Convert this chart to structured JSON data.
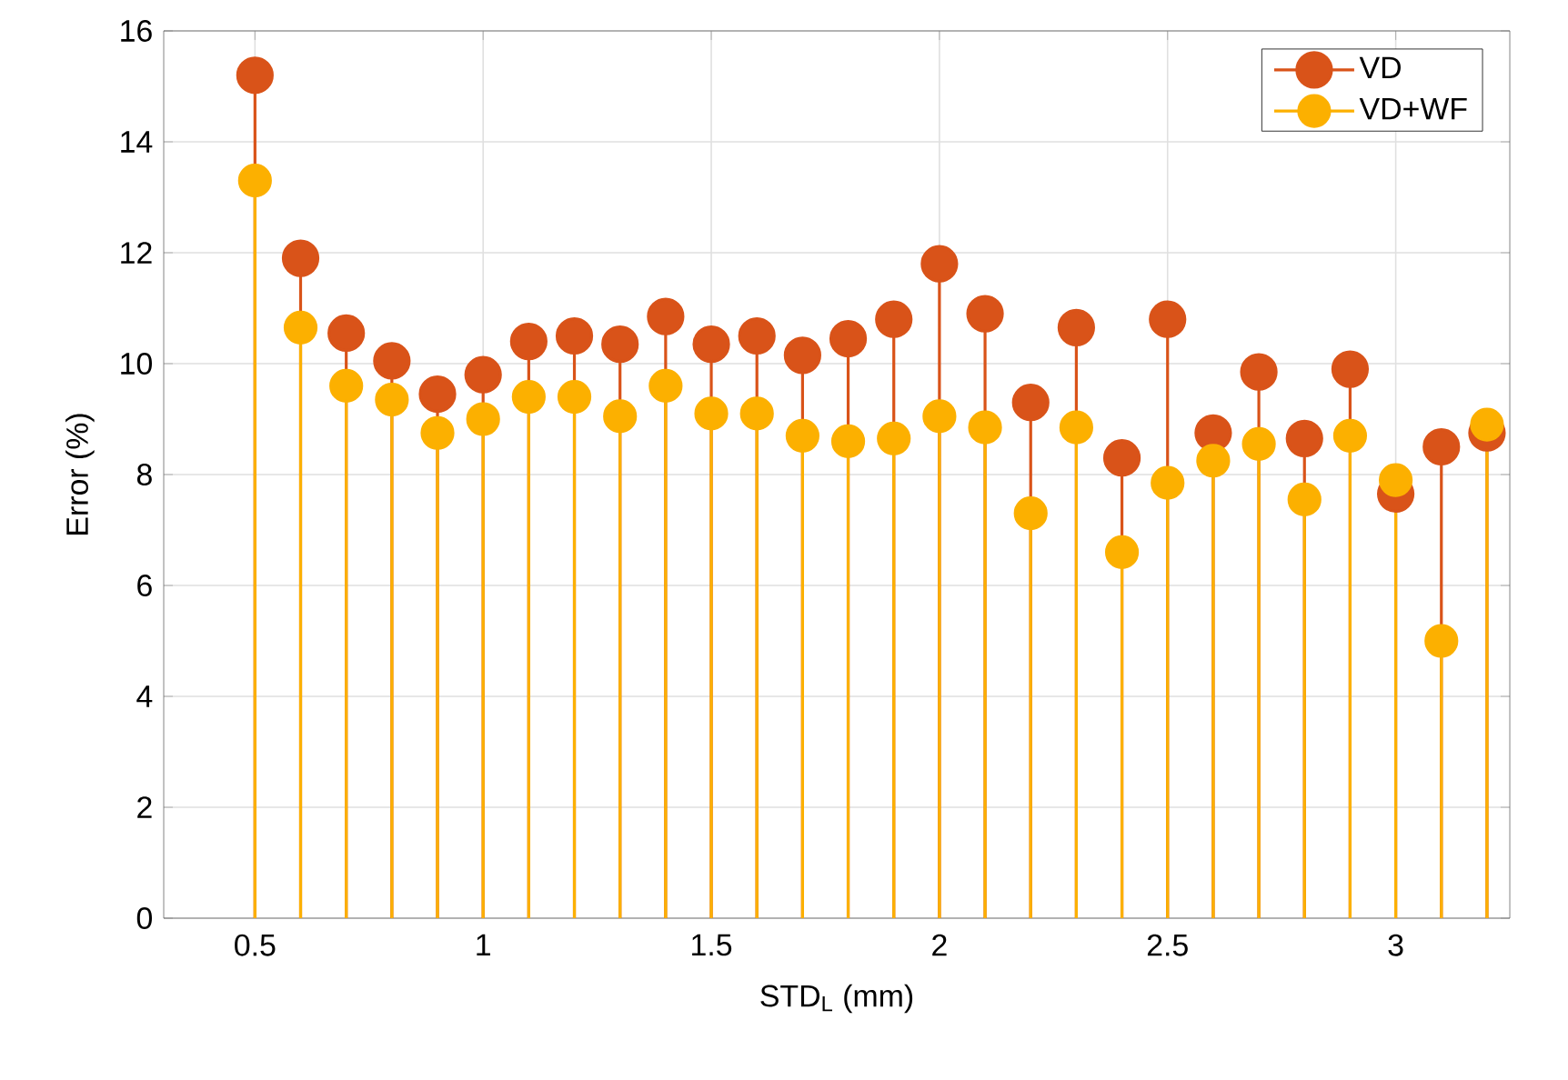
{
  "chart_data": {
    "type": "lollipop",
    "xlabel": "STD$_{L}$ (mm)",
    "ylabel": "Error (%)",
    "x": [
      0.5,
      0.6,
      0.7,
      0.8,
      0.9,
      1.0,
      1.1,
      1.2,
      1.3,
      1.4,
      1.5,
      1.6,
      1.7,
      1.8,
      1.9,
      2.0,
      2.1,
      2.2,
      2.3,
      2.4,
      2.5,
      2.6,
      2.7,
      2.8,
      2.9,
      3.0,
      3.1,
      3.2
    ],
    "series": [
      {
        "name": "VD",
        "color": "#d95319",
        "values": [
          15.2,
          11.9,
          10.55,
          10.05,
          9.45,
          9.8,
          10.4,
          10.5,
          10.35,
          10.85,
          10.35,
          10.5,
          10.15,
          10.45,
          10.8,
          11.8,
          10.9,
          9.3,
          10.65,
          8.3,
          10.8,
          8.75,
          9.85,
          8.65,
          9.9,
          7.65,
          8.5,
          8.75
        ]
      },
      {
        "name": "VD+WF",
        "color": "#fcb000",
        "values": [
          13.3,
          10.65,
          9.6,
          9.35,
          8.75,
          9.0,
          9.4,
          9.4,
          9.05,
          9.6,
          9.1,
          9.1,
          8.7,
          8.6,
          8.65,
          9.05,
          8.85,
          7.3,
          8.85,
          6.6,
          7.85,
          8.25,
          8.55,
          7.55,
          8.7,
          7.9,
          5.0,
          8.9
        ]
      }
    ],
    "xlim": [
      0.3,
      3.25
    ],
    "xticks": [
      0.5,
      1,
      1.5,
      2,
      2.5,
      3
    ],
    "ylim": [
      0,
      16
    ],
    "yticks": [
      0,
      2,
      4,
      6,
      8,
      10,
      12,
      14,
      16
    ],
    "grid": true,
    "legend": "top right",
    "marker": "circle",
    "line_style": "solid"
  }
}
